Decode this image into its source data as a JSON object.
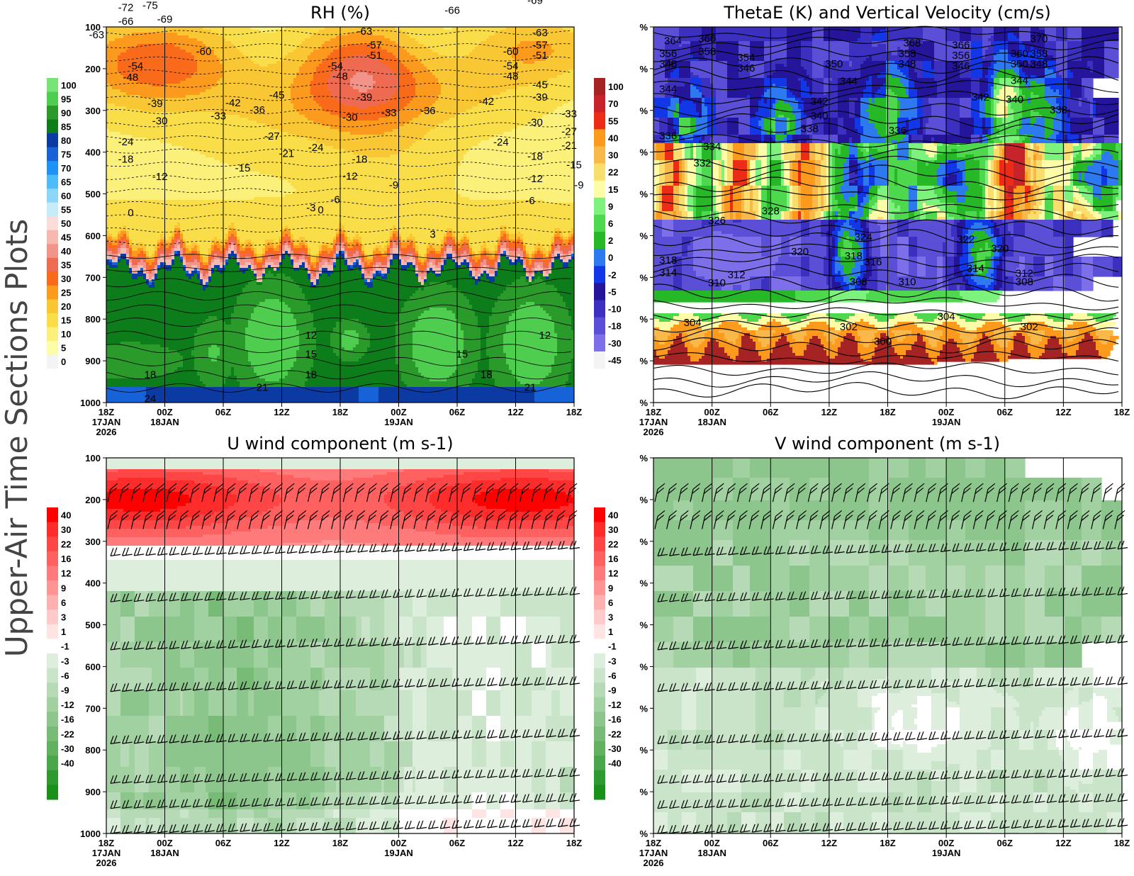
{
  "figure_title": "Upper-Air Time Sections Plots",
  "colors": {
    "rh": [
      "#f4f4f4",
      "#fdfda8",
      "#fbf07a",
      "#f9de4a",
      "#f9c733",
      "#fb9a1d",
      "#f96a1a",
      "#ee6a50",
      "#f2948a",
      "#f7b8b0",
      "#fbdcd8",
      "#c6ecfa",
      "#8dd6fb",
      "#4fbbfa",
      "#1e93f5",
      "#1662d6",
      "#0b3aa3",
      "#0d7d1b",
      "#2a9b2b",
      "#4fcd4f",
      "#77e477"
    ],
    "theta": [
      "#f4f4f4",
      "#7d6ee9",
      "#5a4fd6",
      "#3b30bf",
      "#25159a",
      "#1237e6",
      "#2d79f0",
      "#26b827",
      "#4ed84e",
      "#7df27d",
      "#fdfda8",
      "#f9de6e",
      "#f9b94a",
      "#fb9a1d",
      "#ed2c17",
      "#c6232b",
      "#a52323"
    ],
    "wind": [
      "#199119",
      "#2e992e",
      "#4aa64a",
      "#61b161",
      "#77bb77",
      "#8cc68c",
      "#a1d0a1",
      "#b5dab5",
      "#c9e4c9",
      "#ddeedd",
      "#ffffff",
      "#ffe4e4",
      "#ffcaca",
      "#ffb0b0",
      "#ff9494",
      "#ff7a7a",
      "#ff6060",
      "#ff4646",
      "#ff2c2c",
      "#ff0000"
    ]
  },
  "chart_data": [
    {
      "type": "heatmap",
      "title": "RH (%)",
      "ylabel_ticks": [
        "100",
        "200",
        "300",
        "400",
        "500",
        "600",
        "700",
        "800",
        "900",
        "1000"
      ],
      "xticks": [
        "18Z",
        "00Z",
        "06Z",
        "12Z",
        "18Z",
        "00Z",
        "06Z",
        "12Z",
        "18Z"
      ],
      "xtick_dates": [
        "17JAN",
        "18JAN",
        "",
        "",
        "",
        "19JAN",
        "",
        "",
        ""
      ],
      "xtick_year": "2026",
      "legend_ticks": [
        "100",
        "95",
        "90",
        "85",
        "80",
        "75",
        "70",
        "65",
        "60",
        "55",
        "50",
        "45",
        "40",
        "35",
        "30",
        "25",
        "20",
        "15",
        "10",
        "5",
        "0"
      ],
      "contour_labels": [
        {
          "t": 4,
          "p": 55,
          "text": "-72"
        },
        {
          "t": 9,
          "p": 50,
          "text": "-75"
        },
        {
          "t": 12,
          "p": 83,
          "text": "-69"
        },
        {
          "t": -2,
          "p": 120,
          "text": "-63"
        },
        {
          "t": 4,
          "p": 88,
          "text": "-66"
        },
        {
          "t": 20,
          "p": 160,
          "text": "-60"
        },
        {
          "t": 6,
          "p": 195,
          "text": "-54"
        },
        {
          "t": 5,
          "p": 222,
          "text": "-48"
        },
        {
          "t": 10,
          "p": 285,
          "text": "-39"
        },
        {
          "t": 11,
          "p": 327,
          "text": "-30"
        },
        {
          "t": 26,
          "p": 283,
          "text": "-42"
        },
        {
          "t": 23,
          "p": 315,
          "text": "-33"
        },
        {
          "t": 31,
          "p": 300,
          "text": "-36"
        },
        {
          "t": 35,
          "p": 265,
          "text": "-45"
        },
        {
          "t": 34,
          "p": 363,
          "text": "-27"
        },
        {
          "t": 37,
          "p": 405,
          "text": "-21"
        },
        {
          "t": 4,
          "p": 377,
          "text": "-24"
        },
        {
          "t": 4,
          "p": 418,
          "text": "-18"
        },
        {
          "t": 11,
          "p": 460,
          "text": "-12"
        },
        {
          "t": 28,
          "p": 440,
          "text": "-15"
        },
        {
          "t": 53,
          "p": 112,
          "text": "-63"
        },
        {
          "t": 55,
          "p": 145,
          "text": "-57"
        },
        {
          "t": 55,
          "p": 170,
          "text": "-51"
        },
        {
          "t": 47,
          "p": 195,
          "text": "-54"
        },
        {
          "t": 48,
          "p": 220,
          "text": "-48"
        },
        {
          "t": 53,
          "p": 270,
          "text": "-39"
        },
        {
          "t": 50,
          "p": 318,
          "text": "-30"
        },
        {
          "t": 58,
          "p": 307,
          "text": "-33"
        },
        {
          "t": 43,
          "p": 390,
          "text": "-24"
        },
        {
          "t": 52,
          "p": 418,
          "text": "-18"
        },
        {
          "t": 50,
          "p": 459,
          "text": "-12"
        },
        {
          "t": 59,
          "p": 480,
          "text": "-9"
        },
        {
          "t": 47,
          "p": 515,
          "text": "-6"
        },
        {
          "t": 42,
          "p": 535,
          "text": "-3"
        },
        {
          "t": 44,
          "p": 540,
          "text": "0"
        },
        {
          "t": 71,
          "p": 62,
          "text": "-66"
        },
        {
          "t": 83,
          "p": 160,
          "text": "-60"
        },
        {
          "t": 83,
          "p": 195,
          "text": "-54"
        },
        {
          "t": 83,
          "p": 220,
          "text": "-48"
        },
        {
          "t": 88,
          "p": 38,
          "text": "-69"
        },
        {
          "t": 89,
          "p": 115,
          "text": "-63"
        },
        {
          "t": 89,
          "p": 145,
          "text": "-57"
        },
        {
          "t": 89,
          "p": 170,
          "text": "-51"
        },
        {
          "t": 89,
          "p": 240,
          "text": "-45"
        },
        {
          "t": 89,
          "p": 270,
          "text": "-39"
        },
        {
          "t": 78,
          "p": 280,
          "text": "-42"
        },
        {
          "t": 66,
          "p": 302,
          "text": "-36"
        },
        {
          "t": 88,
          "p": 330,
          "text": "-30"
        },
        {
          "t": 95,
          "p": 310,
          "text": "-33"
        },
        {
          "t": 95,
          "p": 352,
          "text": "-27"
        },
        {
          "t": 95,
          "p": 385,
          "text": "-21"
        },
        {
          "t": 81,
          "p": 378,
          "text": "-24"
        },
        {
          "t": 88,
          "p": 412,
          "text": "-18"
        },
        {
          "t": 96,
          "p": 432,
          "text": "-15"
        },
        {
          "t": 88,
          "p": 465,
          "text": "-12"
        },
        {
          "t": 97,
          "p": 480,
          "text": "-9"
        },
        {
          "t": 87,
          "p": 518,
          "text": "-6"
        },
        {
          "t": 5,
          "p": 547,
          "text": "0"
        },
        {
          "t": 67,
          "p": 598,
          "text": "3"
        },
        {
          "t": 42,
          "p": 840,
          "text": "12"
        },
        {
          "t": 42,
          "p": 885,
          "text": "15"
        },
        {
          "t": 42,
          "p": 935,
          "text": "18"
        },
        {
          "t": 90,
          "p": 840,
          "text": "12"
        },
        {
          "t": 73,
          "p": 885,
          "text": "15"
        },
        {
          "t": 78,
          "p": 935,
          "text": "18"
        },
        {
          "t": 9,
          "p": 935,
          "text": "18"
        },
        {
          "t": 32,
          "p": 965,
          "text": "21"
        },
        {
          "t": 87,
          "p": 965,
          "text": "21"
        },
        {
          "t": 9,
          "p": 992,
          "text": "24"
        }
      ]
    },
    {
      "type": "heatmap",
      "title": "ThetaE (K) and Vertical Velocity (cm/s)",
      "ylabel_ticks": [
        "%",
        "%",
        "%",
        "%",
        "%",
        "%",
        "%",
        "%",
        "%",
        "%"
      ],
      "xticks": [
        "18Z",
        "00Z",
        "06Z",
        "12Z",
        "18Z",
        "00Z",
        "06Z",
        "12Z",
        "18Z"
      ],
      "xtick_dates": [
        "17JAN",
        "18JAN",
        "",
        "",
        "",
        "19JAN",
        "",
        "",
        ""
      ],
      "xtick_year": "2026",
      "legend_ticks": [
        "100",
        "70",
        "55",
        "40",
        "30",
        "22",
        "15",
        "9",
        "6",
        "2",
        "0",
        "-2",
        "-5",
        "-10",
        "-18",
        "-30",
        "-45"
      ],
      "contour_labels": [
        {
          "t": 4,
          "p": 135,
          "text": "364"
        },
        {
          "t": 11,
          "p": 130,
          "text": "366"
        },
        {
          "t": 3,
          "p": 165,
          "text": "356"
        },
        {
          "t": 11,
          "p": 160,
          "text": "358"
        },
        {
          "t": 3,
          "p": 190,
          "text": "348"
        },
        {
          "t": 19,
          "p": 175,
          "text": "354"
        },
        {
          "t": 19,
          "p": 200,
          "text": "346"
        },
        {
          "t": 3,
          "p": 250,
          "text": "344"
        },
        {
          "t": 37,
          "p": 190,
          "text": "350"
        },
        {
          "t": 40,
          "p": 232,
          "text": "344"
        },
        {
          "t": 34,
          "p": 280,
          "text": "342"
        },
        {
          "t": 34,
          "p": 315,
          "text": "340"
        },
        {
          "t": 32,
          "p": 345,
          "text": "338"
        },
        {
          "t": 3,
          "p": 362,
          "text": "336"
        },
        {
          "t": 12,
          "p": 388,
          "text": "334"
        },
        {
          "t": 10,
          "p": 428,
          "text": "332"
        },
        {
          "t": 53,
          "p": 140,
          "text": "368"
        },
        {
          "t": 52,
          "p": 165,
          "text": "358"
        },
        {
          "t": 52,
          "p": 190,
          "text": "348"
        },
        {
          "t": 63,
          "p": 145,
          "text": "366"
        },
        {
          "t": 63,
          "p": 170,
          "text": "356"
        },
        {
          "t": 63,
          "p": 195,
          "text": "346"
        },
        {
          "t": 79,
          "p": 130,
          "text": "370"
        },
        {
          "t": 75,
          "p": 165,
          "text": "360"
        },
        {
          "t": 79,
          "p": 165,
          "text": "358"
        },
        {
          "t": 75,
          "p": 190,
          "text": "350"
        },
        {
          "t": 79,
          "p": 190,
          "text": "348"
        },
        {
          "t": 75,
          "p": 230,
          "text": "344"
        },
        {
          "t": 74,
          "p": 275,
          "text": "340"
        },
        {
          "t": 67,
          "p": 270,
          "text": "342"
        },
        {
          "t": 83,
          "p": 300,
          "text": "338"
        },
        {
          "t": 50,
          "p": 350,
          "text": "336"
        },
        {
          "t": 24,
          "p": 542,
          "text": "328"
        },
        {
          "t": 13,
          "p": 565,
          "text": "326"
        },
        {
          "t": 43,
          "p": 605,
          "text": "324"
        },
        {
          "t": 64,
          "p": 610,
          "text": "322"
        },
        {
          "t": 71,
          "p": 632,
          "text": "320"
        },
        {
          "t": 30,
          "p": 640,
          "text": "320"
        },
        {
          "t": 41,
          "p": 650,
          "text": "318"
        },
        {
          "t": 45,
          "p": 665,
          "text": "316"
        },
        {
          "t": 66,
          "p": 680,
          "text": "314"
        },
        {
          "t": 3,
          "p": 660,
          "text": "318"
        },
        {
          "t": 3,
          "p": 690,
          "text": "314"
        },
        {
          "t": 17,
          "p": 695,
          "text": "312"
        },
        {
          "t": 13,
          "p": 715,
          "text": "310"
        },
        {
          "t": 42,
          "p": 712,
          "text": "308"
        },
        {
          "t": 52,
          "p": 712,
          "text": "310"
        },
        {
          "t": 76,
          "p": 692,
          "text": "312"
        },
        {
          "t": 76,
          "p": 712,
          "text": "308"
        },
        {
          "t": 8,
          "p": 810,
          "text": "304"
        },
        {
          "t": 60,
          "p": 795,
          "text": "304"
        },
        {
          "t": 40,
          "p": 820,
          "text": "302"
        },
        {
          "t": 77,
          "p": 820,
          "text": "302"
        },
        {
          "t": 47,
          "p": 855,
          "text": "300"
        }
      ]
    },
    {
      "type": "heatmap",
      "title": "U wind component (m s-1)",
      "ylabel_ticks": [
        "100",
        "200",
        "300",
        "400",
        "500",
        "600",
        "700",
        "800",
        "900",
        "1000"
      ],
      "xticks": [
        "18Z",
        "00Z",
        "06Z",
        "12Z",
        "18Z",
        "00Z",
        "06Z",
        "12Z",
        "18Z"
      ],
      "xtick_dates": [
        "17JAN",
        "18JAN",
        "",
        "",
        "",
        "19JAN",
        "",
        "",
        ""
      ],
      "xtick_year": "2026",
      "legend_ticks": [
        "40",
        "30",
        "22",
        "16",
        "12",
        "9",
        "6",
        "3",
        "1",
        "-1",
        "-3",
        "-6",
        "-9",
        "-12",
        "-16",
        "-22",
        "-30",
        "-40"
      ],
      "wind_levels_hPa": [
        175,
        240,
        335,
        445,
        560,
        660,
        785,
        880,
        940,
        1000
      ]
    },
    {
      "type": "heatmap",
      "title": "V wind component (m s-1)",
      "ylabel_ticks": [
        "%",
        "%",
        "%",
        "%",
        "%",
        "%",
        "%",
        "%",
        "%",
        "%"
      ],
      "xticks": [
        "18Z",
        "00Z",
        "06Z",
        "12Z",
        "18Z",
        "00Z",
        "06Z",
        "12Z",
        "18Z"
      ],
      "xtick_dates": [
        "17JAN",
        "18JAN",
        "",
        "",
        "",
        "19JAN",
        "",
        "",
        ""
      ],
      "xtick_year": "2026",
      "legend_ticks": [
        "40",
        "30",
        "22",
        "16",
        "12",
        "9",
        "6",
        "3",
        "1",
        "-1",
        "-3",
        "-6",
        "-9",
        "-12",
        "-16",
        "-22",
        "-30",
        "-40"
      ],
      "wind_levels_hPa": [
        175,
        240,
        335,
        445,
        560,
        660,
        785,
        880,
        940,
        1000
      ]
    }
  ]
}
